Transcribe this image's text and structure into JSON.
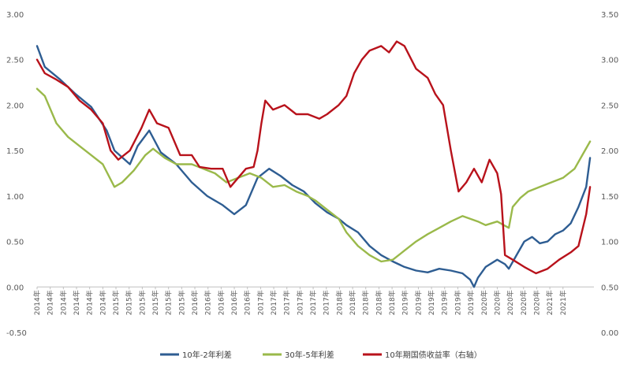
{
  "chart_data": {
    "type": "line",
    "title": "",
    "left_axis": {
      "ylim": [
        -0.5,
        3.0
      ],
      "ticks": [
        "3.00",
        "2.50",
        "2.00",
        "1.50",
        "1.00",
        "0.50",
        "0.00",
        "-0.50"
      ],
      "tick_values": [
        3.0,
        2.5,
        2.0,
        1.5,
        1.0,
        0.5,
        0.0,
        -0.5
      ]
    },
    "right_axis": {
      "ylim": [
        0.0,
        3.5
      ],
      "ticks": [
        "3.50",
        "3.00",
        "2.50",
        "2.00",
        "1.50",
        "1.00",
        "0.50",
        "0.00"
      ],
      "tick_values": [
        3.5,
        3.0,
        2.5,
        2.0,
        1.5,
        1.0,
        0.5,
        0.0
      ]
    },
    "x_axis": {
      "range": [
        2014.0,
        2021.2
      ],
      "tick_labels": [
        "2014年",
        "2014年",
        "2014年",
        "2014年",
        "2014年",
        "2014年",
        "2015年",
        "2015年",
        "2015年",
        "2015年",
        "2015年",
        "2015年",
        "2016年",
        "2016年",
        "2016年",
        "2016年",
        "2016年",
        "2017年",
        "2017年",
        "2017年",
        "2017年",
        "2017年",
        "2017年",
        "2018年",
        "2018年",
        "2018年",
        "2018年",
        "2018年",
        "2019年",
        "2019年",
        "2019年",
        "2019年",
        "2019年",
        "2019年",
        "2020年",
        "2020年",
        "2020年",
        "2020年",
        "2020年",
        "2021年",
        "2021年"
      ],
      "tick_values": [
        2014.0,
        2014.17,
        2014.34,
        2014.51,
        2014.68,
        2014.85,
        2015.02,
        2015.19,
        2015.36,
        2015.53,
        2015.7,
        2015.87,
        2016.04,
        2016.21,
        2016.38,
        2016.55,
        2016.72,
        2016.89,
        2017.06,
        2017.23,
        2017.4,
        2017.57,
        2017.74,
        2017.91,
        2018.08,
        2018.25,
        2018.42,
        2018.59,
        2018.76,
        2018.93,
        2019.1,
        2019.27,
        2019.44,
        2019.61,
        2019.78,
        2019.95,
        2020.12,
        2020.29,
        2020.46,
        2020.63,
        2020.8
      ]
    },
    "series": [
      {
        "name": "10年-2年利差",
        "color": "#2e5d92",
        "axis": "left",
        "x": [
          2014.0,
          2014.1,
          2014.3,
          2014.5,
          2014.7,
          2014.9,
          2015.0,
          2015.2,
          2015.3,
          2015.45,
          2015.6,
          2015.8,
          2016.0,
          2016.2,
          2016.4,
          2016.55,
          2016.7,
          2016.85,
          2017.0,
          2017.15,
          2017.3,
          2017.45,
          2017.6,
          2017.75,
          2017.9,
          2018.0,
          2018.15,
          2018.3,
          2018.45,
          2018.6,
          2018.75,
          2018.9,
          2019.05,
          2019.2,
          2019.35,
          2019.5,
          2019.6,
          2019.65,
          2019.7,
          2019.8,
          2019.95,
          2020.05,
          2020.1,
          2020.2,
          2020.3,
          2020.4,
          2020.5,
          2020.6,
          2020.7,
          2020.8,
          2020.9,
          2021.0,
          2021.1,
          2021.15
        ],
        "values": [
          2.65,
          2.42,
          2.28,
          2.12,
          1.98,
          1.72,
          1.5,
          1.35,
          1.55,
          1.72,
          1.48,
          1.35,
          1.15,
          1.0,
          0.9,
          0.8,
          0.9,
          1.2,
          1.3,
          1.22,
          1.12,
          1.05,
          0.92,
          0.82,
          0.75,
          0.68,
          0.6,
          0.45,
          0.35,
          0.28,
          0.22,
          0.18,
          0.16,
          0.2,
          0.18,
          0.15,
          0.08,
          0.0,
          0.1,
          0.22,
          0.3,
          0.25,
          0.2,
          0.35,
          0.5,
          0.55,
          0.48,
          0.5,
          0.58,
          0.62,
          0.7,
          0.88,
          1.1,
          1.42
        ]
      },
      {
        "name": "30年-5年利差",
        "color": "#9ab94a",
        "axis": "left",
        "x": [
          2014.0,
          2014.1,
          2014.25,
          2014.4,
          2014.55,
          2014.7,
          2014.85,
          2015.0,
          2015.1,
          2015.25,
          2015.4,
          2015.5,
          2015.65,
          2015.8,
          2016.0,
          2016.15,
          2016.3,
          2016.45,
          2016.6,
          2016.75,
          2016.9,
          2017.05,
          2017.2,
          2017.35,
          2017.5,
          2017.6,
          2017.75,
          2017.9,
          2018.0,
          2018.15,
          2018.3,
          2018.45,
          2018.6,
          2018.75,
          2018.9,
          2019.05,
          2019.2,
          2019.35,
          2019.5,
          2019.6,
          2019.7,
          2019.8,
          2019.95,
          2020.1,
          2020.15,
          2020.25,
          2020.35,
          2020.5,
          2020.65,
          2020.8,
          2020.95,
          2021.05,
          2021.15
        ],
        "values": [
          2.18,
          2.1,
          1.8,
          1.65,
          1.55,
          1.45,
          1.35,
          1.1,
          1.15,
          1.28,
          1.45,
          1.52,
          1.42,
          1.35,
          1.35,
          1.3,
          1.25,
          1.15,
          1.2,
          1.25,
          1.2,
          1.1,
          1.12,
          1.05,
          1.0,
          0.95,
          0.85,
          0.75,
          0.6,
          0.45,
          0.35,
          0.28,
          0.3,
          0.4,
          0.5,
          0.58,
          0.65,
          0.72,
          0.78,
          0.75,
          0.72,
          0.68,
          0.72,
          0.65,
          0.88,
          0.98,
          1.05,
          1.1,
          1.15,
          1.2,
          1.3,
          1.45,
          1.6
        ]
      },
      {
        "name": "10年期国债收益率（右轴）",
        "color": "#b8121b",
        "axis": "right",
        "x": [
          2014.0,
          2014.1,
          2014.25,
          2014.4,
          2014.55,
          2014.7,
          2014.85,
          2014.95,
          2015.05,
          2015.2,
          2015.35,
          2015.45,
          2015.55,
          2015.7,
          2015.85,
          2016.0,
          2016.1,
          2016.25,
          2016.4,
          2016.5,
          2016.6,
          2016.7,
          2016.8,
          2016.85,
          2016.9,
          2016.95,
          2017.05,
          2017.2,
          2017.35,
          2017.5,
          2017.65,
          2017.75,
          2017.9,
          2018.0,
          2018.1,
          2018.2,
          2018.3,
          2018.45,
          2018.55,
          2018.65,
          2018.75,
          2018.9,
          2019.05,
          2019.15,
          2019.25,
          2019.35,
          2019.45,
          2019.55,
          2019.65,
          2019.75,
          2019.85,
          2019.95,
          2020.0,
          2020.05,
          2020.15,
          2020.3,
          2020.45,
          2020.6,
          2020.75,
          2020.9,
          2021.0,
          2021.1,
          2021.15
        ],
        "values": [
          3.0,
          2.85,
          2.78,
          2.7,
          2.55,
          2.45,
          2.3,
          2.0,
          1.9,
          2.0,
          2.25,
          2.45,
          2.3,
          2.25,
          1.95,
          1.95,
          1.82,
          1.8,
          1.8,
          1.6,
          1.7,
          1.8,
          1.82,
          2.0,
          2.3,
          2.55,
          2.45,
          2.5,
          2.4,
          2.4,
          2.35,
          2.4,
          2.5,
          2.6,
          2.85,
          3.0,
          3.1,
          3.15,
          3.08,
          3.2,
          3.15,
          2.9,
          2.8,
          2.62,
          2.5,
          2.0,
          1.55,
          1.65,
          1.8,
          1.65,
          1.9,
          1.75,
          1.52,
          0.85,
          0.8,
          0.72,
          0.65,
          0.7,
          0.8,
          0.88,
          0.95,
          1.3,
          1.6
        ]
      }
    ],
    "legend": {
      "placement": "bottom",
      "entries": [
        "10年-2年利差",
        "30年-5年利差",
        "10年期国债收益率（右轴）"
      ]
    }
  }
}
